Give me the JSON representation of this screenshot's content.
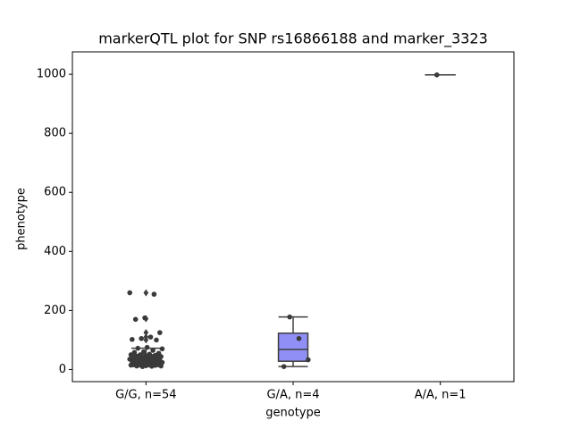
{
  "chart_data": {
    "type": "box",
    "title": "markerQTL plot for SNP rs16866188 and marker_3323",
    "x_label": "genotype",
    "y_label": "phenotype",
    "categories": [
      "G/G, n=54",
      "G/A, n=4",
      "A/A, n=1"
    ],
    "boxes": [
      {
        "color": "#5a9bd4",
        "q1": 26,
        "median": 35,
        "q3": 50,
        "whislo": 10,
        "whishi": 72,
        "fliers": [
          100,
          110,
          125,
          172,
          260
        ]
      },
      {
        "color": "#8f8ff5",
        "q1": 28,
        "median": 68,
        "q3": 123,
        "whislo": 10,
        "whishi": 178,
        "fliers": []
      },
      {
        "color": "#8fd48f",
        "q1": 998,
        "median": 998,
        "q3": 998,
        "whislo": 998,
        "whishi": 998,
        "fliers": []
      }
    ],
    "points": [
      [
        10,
        11,
        12,
        12,
        13,
        14,
        15,
        15,
        16,
        18,
        20,
        20,
        22,
        24,
        25,
        26,
        27,
        28,
        30,
        30,
        31,
        32,
        33,
        34,
        35,
        35,
        36,
        38,
        40,
        40,
        42,
        44,
        45,
        46,
        48,
        50,
        50,
        52,
        55,
        58,
        60,
        65,
        70,
        72,
        75,
        100,
        102,
        105,
        110,
        125,
        170,
        175,
        255,
        260
      ],
      [
        178,
        105,
        33,
        10
      ],
      [
        998
      ]
    ],
    "point_color": "#3a3a3a",
    "ylim": [
      -41,
      1076
    ],
    "yticks": [
      0,
      200,
      400,
      600,
      800,
      1000
    ]
  }
}
